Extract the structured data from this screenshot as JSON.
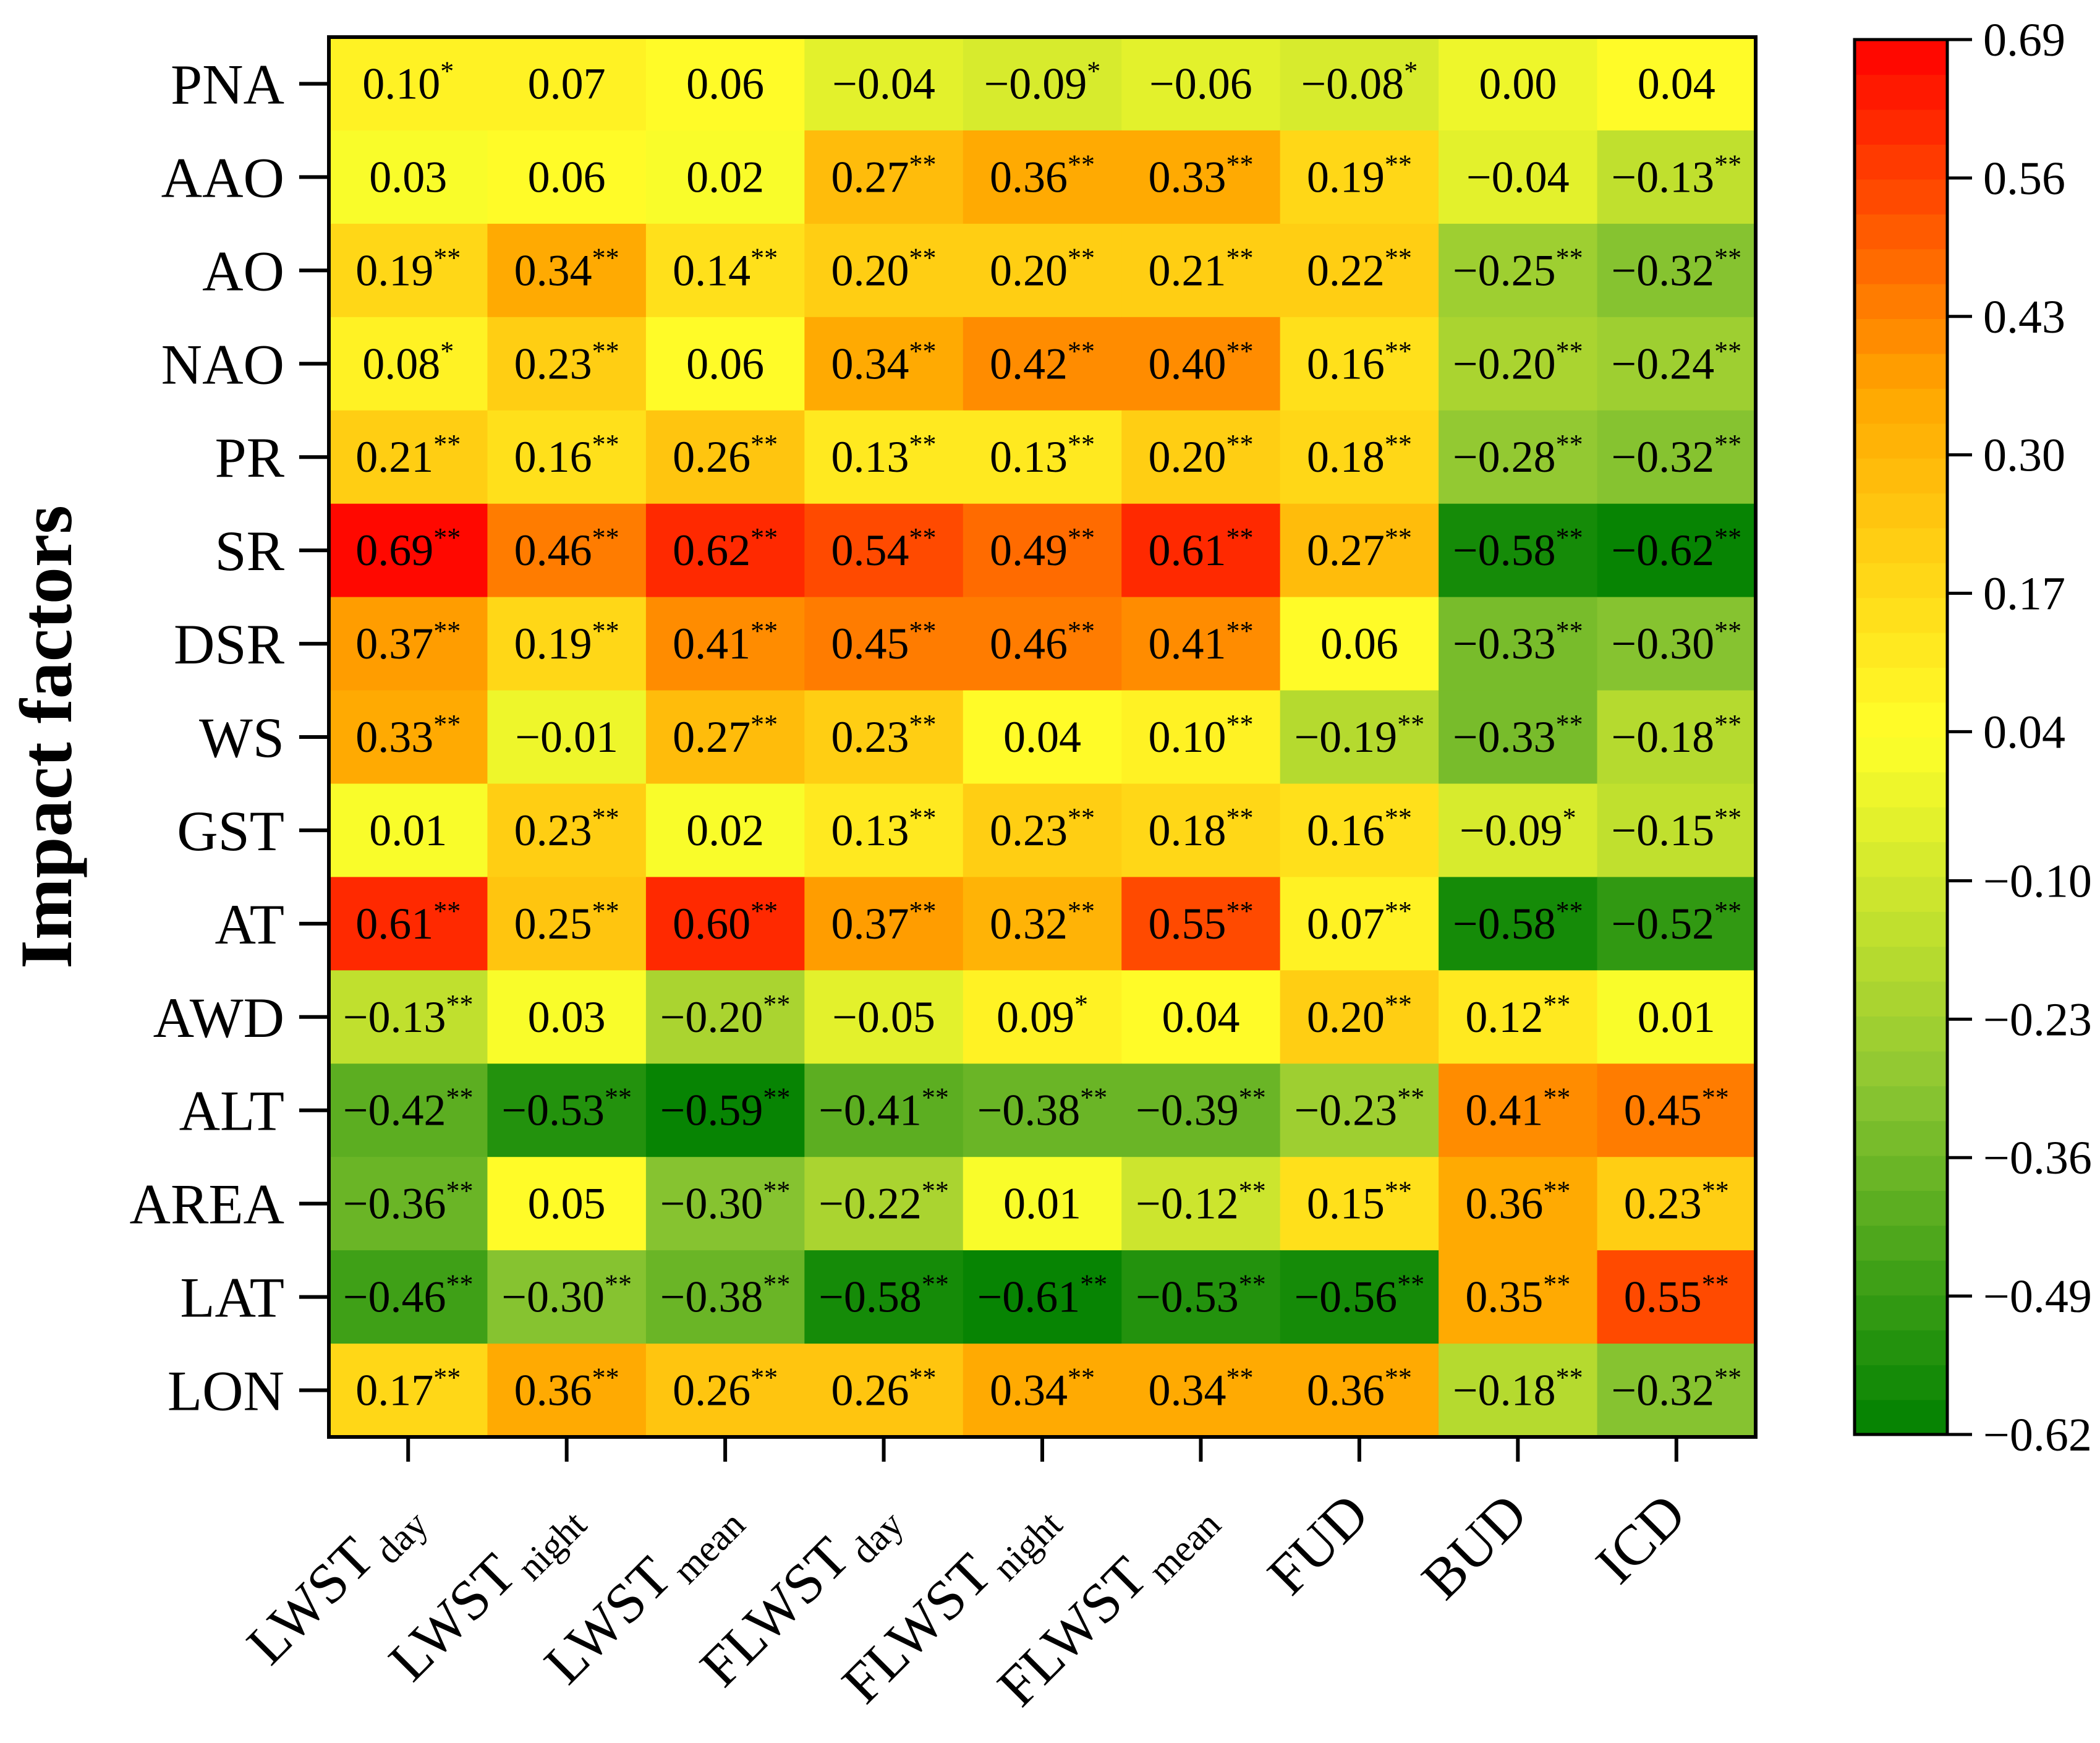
{
  "chart_data": {
    "type": "heatmap",
    "title": "",
    "ylabel": "Impact factors",
    "rows": [
      "PNA",
      "AAO",
      "AO",
      "NAO",
      "PR",
      "SR",
      "DSR",
      "WS",
      "GST",
      "AT",
      "AWD",
      "ALT",
      "AREA",
      "LAT",
      "LON"
    ],
    "columns": [
      {
        "main": "LWST",
        "sub": "day"
      },
      {
        "main": "LWST",
        "sub": "night"
      },
      {
        "main": "LWST",
        "sub": "mean"
      },
      {
        "main": "FLWST",
        "sub": "day"
      },
      {
        "main": "FLWST",
        "sub": "night"
      },
      {
        "main": "FLWST",
        "sub": "mean"
      },
      {
        "main": "FUD",
        "sub": ""
      },
      {
        "main": "BUD",
        "sub": ""
      },
      {
        "main": "ICD",
        "sub": ""
      }
    ],
    "values": [
      [
        0.1,
        0.07,
        0.06,
        -0.04,
        -0.09,
        -0.06,
        -0.08,
        0.0,
        0.04
      ],
      [
        0.03,
        0.06,
        0.02,
        0.27,
        0.36,
        0.33,
        0.19,
        -0.04,
        -0.13
      ],
      [
        0.19,
        0.34,
        0.14,
        0.2,
        0.2,
        0.21,
        0.22,
        -0.25,
        -0.32
      ],
      [
        0.08,
        0.23,
        0.06,
        0.34,
        0.42,
        0.4,
        0.16,
        -0.2,
        -0.24
      ],
      [
        0.21,
        0.16,
        0.26,
        0.13,
        0.13,
        0.2,
        0.18,
        -0.28,
        -0.32
      ],
      [
        0.69,
        0.46,
        0.62,
        0.54,
        0.49,
        0.61,
        0.27,
        -0.58,
        -0.62
      ],
      [
        0.37,
        0.19,
        0.41,
        0.45,
        0.46,
        0.41,
        0.06,
        -0.33,
        -0.3
      ],
      [
        0.33,
        -0.01,
        0.27,
        0.23,
        0.04,
        0.1,
        -0.19,
        -0.33,
        -0.18
      ],
      [
        0.01,
        0.23,
        0.02,
        0.13,
        0.23,
        0.18,
        0.16,
        -0.09,
        -0.15
      ],
      [
        0.61,
        0.25,
        0.6,
        0.37,
        0.32,
        0.55,
        0.07,
        -0.58,
        -0.52
      ],
      [
        -0.13,
        0.03,
        -0.2,
        -0.05,
        0.09,
        0.04,
        0.2,
        0.12,
        0.01
      ],
      [
        -0.42,
        -0.53,
        -0.59,
        -0.41,
        -0.38,
        -0.39,
        -0.23,
        0.41,
        0.45
      ],
      [
        -0.36,
        0.05,
        -0.3,
        -0.22,
        0.01,
        -0.12,
        0.15,
        0.36,
        0.23
      ],
      [
        -0.46,
        -0.3,
        -0.38,
        -0.58,
        -0.61,
        -0.53,
        -0.56,
        0.35,
        0.55
      ],
      [
        0.17,
        0.36,
        0.26,
        0.26,
        0.34,
        0.34,
        0.36,
        -0.18,
        -0.32
      ]
    ],
    "display": [
      [
        "0.10",
        "0.07",
        "0.06",
        "−0.04",
        "−0.09",
        "−0.06",
        "−0.08",
        "0.00",
        "0.04"
      ],
      [
        "0.03",
        "0.06",
        "0.02",
        "0.27",
        "0.36",
        "0.33",
        "0.19",
        "−0.04",
        "−0.13"
      ],
      [
        "0.19",
        "0.34",
        "0.14",
        "0.20",
        "0.20",
        "0.21",
        "0.22",
        "−0.25",
        "−0.32"
      ],
      [
        "0.08",
        "0.23",
        "0.06",
        "0.34",
        "0.42",
        "0.40",
        "0.16",
        "−0.20",
        "−0.24"
      ],
      [
        "0.21",
        "0.16",
        "0.26",
        "0.13",
        "0.13",
        "0.20",
        "0.18",
        "−0.28",
        "−0.32"
      ],
      [
        "0.69",
        "0.46",
        "0.62",
        "0.54",
        "0.49",
        "0.61",
        "0.27",
        "−0.58",
        "−0.62"
      ],
      [
        "0.37",
        "0.19",
        "0.41",
        "0.45",
        "0.46",
        "0.41",
        "0.06",
        "−0.33",
        "−0.30"
      ],
      [
        "0.33",
        "−0.01",
        "0.27",
        "0.23",
        "0.04",
        "0.10",
        "−0.19",
        "−0.33",
        "−0.18"
      ],
      [
        "0.01",
        "0.23",
        "0.02",
        "0.13",
        "0.23",
        "0.18",
        "0.16",
        "−0.09",
        "−0.15"
      ],
      [
        "0.61",
        "0.25",
        "0.60",
        "0.37",
        "0.32",
        "0.55",
        "0.07",
        "−0.58",
        "−0.52"
      ],
      [
        "−0.13",
        "0.03",
        "−0.20",
        "−0.05",
        "0.09",
        "0.04",
        "0.20",
        "0.12",
        "0.01"
      ],
      [
        "−0.42",
        "−0.53",
        "−0.59",
        "−0.41",
        "−0.38",
        "−0.39",
        "−0.23",
        "0.41",
        "0.45"
      ],
      [
        "−0.36",
        "0.05",
        "−0.30",
        "−0.22",
        "0.01",
        "−0.12",
        "0.15",
        "0.36",
        "0.23"
      ],
      [
        "−0.46",
        "−0.30",
        "−0.38",
        "−0.58",
        "−0.61",
        "−0.53",
        "−0.56",
        "0.35",
        "0.55"
      ],
      [
        "0.17",
        "0.36",
        "0.26",
        "0.26",
        "0.34",
        "0.34",
        "0.36",
        "−0.18",
        "−0.32"
      ]
    ],
    "significance": [
      [
        "*",
        "",
        "",
        "",
        "*",
        "",
        "*",
        "",
        ""
      ],
      [
        "",
        "",
        "",
        "**",
        "**",
        "**",
        "**",
        "",
        "**"
      ],
      [
        "**",
        "**",
        "**",
        "**",
        "**",
        "**",
        "**",
        "**",
        "**"
      ],
      [
        "*",
        "**",
        "",
        "**",
        "**",
        "**",
        "**",
        "**",
        "**"
      ],
      [
        "**",
        "**",
        "**",
        "**",
        "**",
        "**",
        "**",
        "**",
        "**"
      ],
      [
        "**",
        "**",
        "**",
        "**",
        "**",
        "**",
        "**",
        "**",
        "**"
      ],
      [
        "**",
        "**",
        "**",
        "**",
        "**",
        "**",
        "",
        "**",
        "**"
      ],
      [
        "**",
        "",
        "**",
        "**",
        "",
        "**",
        "**",
        "**",
        "**"
      ],
      [
        "",
        "**",
        "",
        "**",
        "**",
        "**",
        "**",
        "*",
        "**"
      ],
      [
        "**",
        "**",
        "**",
        "**",
        "**",
        "**",
        "**",
        "**",
        "**"
      ],
      [
        "**",
        "",
        "**",
        "",
        "*",
        "",
        "**",
        "**",
        ""
      ],
      [
        "**",
        "**",
        "**",
        "**",
        "**",
        "**",
        "**",
        "**",
        "**"
      ],
      [
        "**",
        "",
        "**",
        "**",
        "",
        "**",
        "**",
        "**",
        "**"
      ],
      [
        "**",
        "**",
        "**",
        "**",
        "**",
        "**",
        "**",
        "**",
        "**"
      ],
      [
        "**",
        "**",
        "**",
        "**",
        "**",
        "**",
        "**",
        "**",
        "**"
      ]
    ],
    "colorbar": {
      "min": -0.62,
      "max": 0.69,
      "ticks": [
        "0.69",
        "0.56",
        "0.43",
        "0.30",
        "0.17",
        "0.04",
        "−0.10",
        "−0.23",
        "−0.36",
        "−0.49",
        "−0.62"
      ],
      "tick_values": [
        0.69,
        0.56,
        0.43,
        0.3,
        0.17,
        0.04,
        -0.1,
        -0.23,
        -0.36,
        -0.49,
        -0.62
      ],
      "levels": 40,
      "colors": [
        "#008000",
        "#8dc632",
        "#ffff2a",
        "#ffa500",
        "#ff0000"
      ]
    }
  }
}
